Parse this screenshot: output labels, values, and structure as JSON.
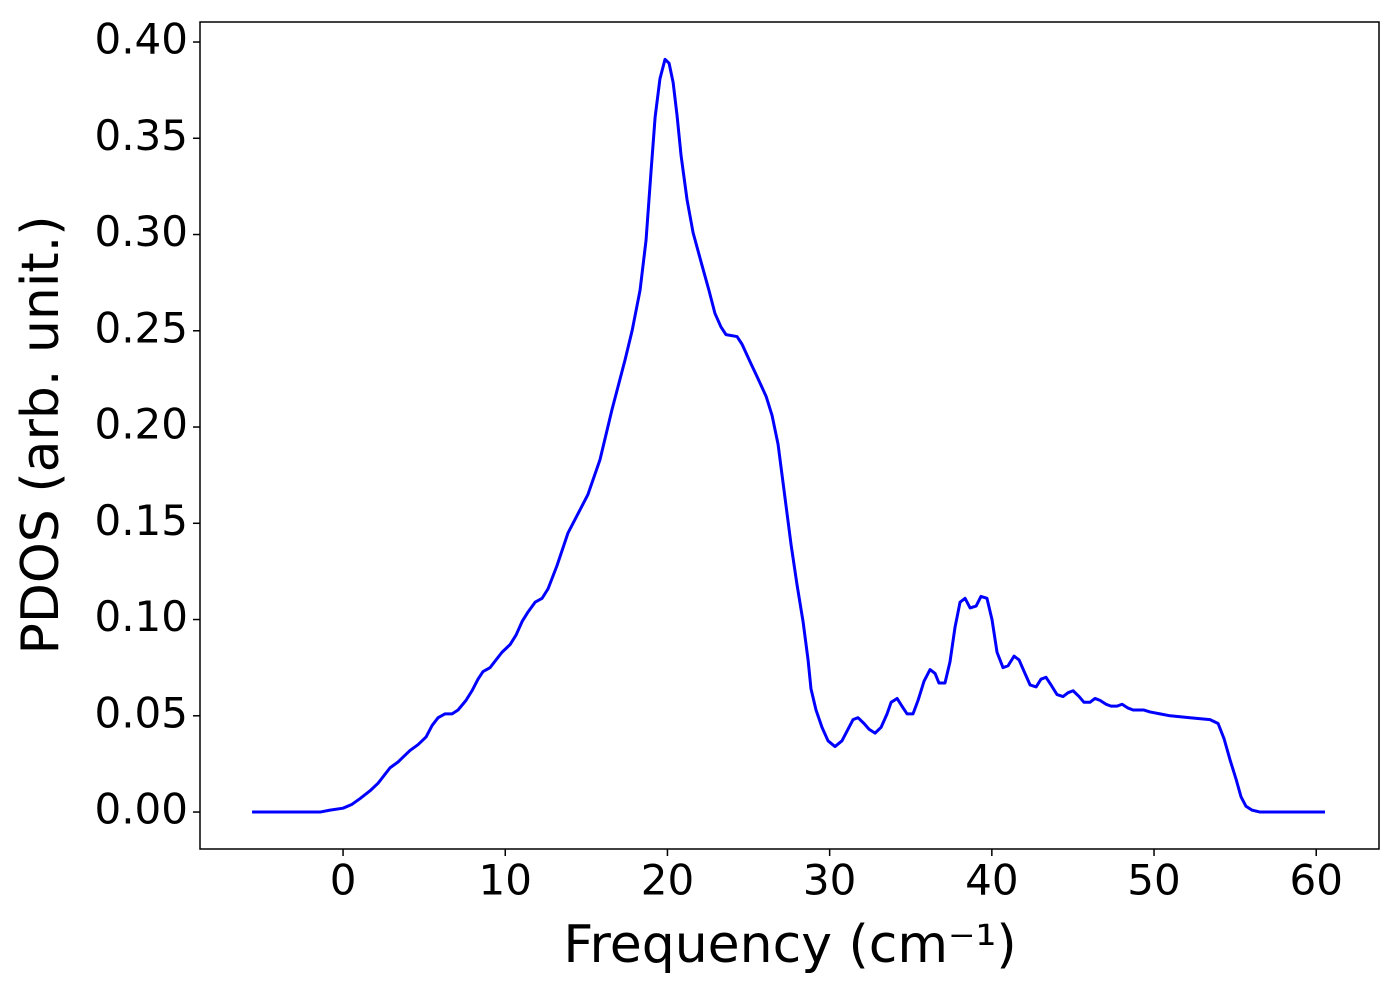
{
  "chart_data": {
    "type": "line",
    "xlabel": "Frequency (cm⁻¹)",
    "ylabel": "PDOS (arb. unit.)",
    "color": "#0000ff",
    "grid": false,
    "xlim": [
      -8.82,
      63.87
    ],
    "ylim": [
      -0.0192,
      0.4104
    ],
    "xticks": [
      0,
      10,
      20,
      30,
      40,
      50,
      60
    ],
    "yticks": [
      {
        "value": 0,
        "label": "0.00"
      },
      {
        "value": 0.05,
        "label": "0.05"
      },
      {
        "value": 0.1,
        "label": "0.10"
      },
      {
        "value": 0.15,
        "label": "0.15"
      },
      {
        "value": 0.2,
        "label": "0.20"
      },
      {
        "value": 0.25,
        "label": "0.25"
      },
      {
        "value": 0.3,
        "label": "0.30"
      },
      {
        "value": 0.35,
        "label": "0.35"
      },
      {
        "value": 0.4,
        "label": "0.40"
      }
    ],
    "x": [
      -5.61,
      -1.42,
      -0.8,
      0,
      0.55,
      1.05,
      1.66,
      2.16,
      2.53,
      2.9,
      3.39,
      3.76,
      4.13,
      4.62,
      5.12,
      5.49,
      5.86,
      6.29,
      6.72,
      7.09,
      7.58,
      7.95,
      8.32,
      8.63,
      9.06,
      9.43,
      9.8,
      10.3,
      10.67,
      11.04,
      11.41,
      11.84,
      12.27,
      12.64,
      13.19,
      13.87,
      14.61,
      15.1,
      15.84,
      16.58,
      17.39,
      17.82,
      18.31,
      18.68,
      18.99,
      19.24,
      19.54,
      19.85,
      20.1,
      20.35,
      20.59,
      20.84,
      21.21,
      21.58,
      22.13,
      22.56,
      22.93,
      23.3,
      23.61,
      24.29,
      24.6,
      25.09,
      25.59,
      26.08,
      26.45,
      26.82,
      27.19,
      27.62,
      27.99,
      28.36,
      28.67,
      28.85,
      29.16,
      29.53,
      29.9,
      30.33,
      30.76,
      31.13,
      31.44,
      31.75,
      32.12,
      32.43,
      32.8,
      33.17,
      33.54,
      33.79,
      34.16,
      34.46,
      34.77,
      35.14,
      35.45,
      35.82,
      36.19,
      36.5,
      36.74,
      37.11,
      37.42,
      37.73,
      38.04,
      38.35,
      38.66,
      39.03,
      39.33,
      39.7,
      40.01,
      40.32,
      40.69,
      41.0,
      41.37,
      41.68,
      41.99,
      42.36,
      42.73,
      43.03,
      43.34,
      43.65,
      44.02,
      44.39,
      44.7,
      45.01,
      45.38,
      45.68,
      46.05,
      46.36,
      46.67,
      47.04,
      47.35,
      47.72,
      48.03,
      48.4,
      48.71,
      49.38,
      49.75,
      50.37,
      50.99,
      52.22,
      53.45,
      53.95,
      54.32,
      54.69,
      55.06,
      55.36,
      55.67,
      56.04,
      56.54,
      60.54
    ],
    "values": [
      0,
      0,
      0.001,
      0.002,
      0.004,
      0.007,
      0.011,
      0.015,
      0.019,
      0.023,
      0.026,
      0.029,
      0.032,
      0.035,
      0.039,
      0.045,
      0.049,
      0.051,
      0.051,
      0.053,
      0.058,
      0.063,
      0.069,
      0.073,
      0.075,
      0.079,
      0.083,
      0.087,
      0.092,
      0.099,
      0.104,
      0.109,
      0.111,
      0.116,
      0.128,
      0.145,
      0.157,
      0.165,
      0.183,
      0.209,
      0.235,
      0.25,
      0.271,
      0.297,
      0.333,
      0.361,
      0.381,
      0.391,
      0.389,
      0.379,
      0.362,
      0.341,
      0.318,
      0.301,
      0.284,
      0.271,
      0.259,
      0.252,
      0.248,
      0.247,
      0.243,
      0.234,
      0.225,
      0.216,
      0.206,
      0.191,
      0.167,
      0.139,
      0.118,
      0.099,
      0.079,
      0.064,
      0.053,
      0.044,
      0.037,
      0.034,
      0.037,
      0.043,
      0.048,
      0.049,
      0.046,
      0.043,
      0.041,
      0.044,
      0.051,
      0.057,
      0.059,
      0.055,
      0.051,
      0.051,
      0.058,
      0.068,
      0.074,
      0.072,
      0.067,
      0.067,
      0.078,
      0.096,
      0.109,
      0.111,
      0.106,
      0.107,
      0.112,
      0.111,
      0.1,
      0.083,
      0.075,
      0.076,
      0.081,
      0.079,
      0.073,
      0.066,
      0.065,
      0.069,
      0.07,
      0.066,
      0.061,
      0.06,
      0.062,
      0.063,
      0.06,
      0.057,
      0.057,
      0.059,
      0.058,
      0.056,
      0.055,
      0.055,
      0.056,
      0.054,
      0.053,
      0.053,
      0.052,
      0.051,
      0.05,
      0.049,
      0.048,
      0.046,
      0.038,
      0.027,
      0.017,
      0.008,
      0.003,
      0.001,
      0,
      0
    ]
  }
}
